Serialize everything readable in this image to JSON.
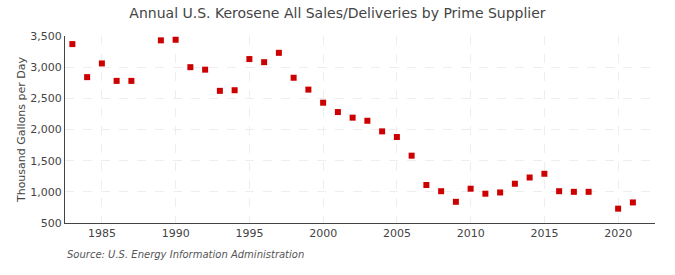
{
  "chart_data": {
    "type": "scatter",
    "title": "Annual U.S. Kerosene All Sales/Deliveries by Prime Supplier",
    "ylabel": "Thousand Gallons per Day",
    "annotations": [
      "Source: U.S. Energy Information Administration"
    ],
    "color": "#cc0000",
    "marker": "square",
    "grid": true,
    "x": [
      1983,
      1984,
      1985,
      1986,
      1987,
      1989,
      1990,
      1991,
      1992,
      1993,
      1994,
      1995,
      1996,
      1997,
      1998,
      1999,
      2000,
      2001,
      2002,
      2003,
      2004,
      2005,
      2006,
      2007,
      2008,
      2009,
      2010,
      2011,
      2012,
      2013,
      2014,
      2015,
      2016,
      2017,
      2018,
      2020,
      2021
    ],
    "values": [
      3370,
      2840,
      3060,
      2780,
      2780,
      3430,
      3440,
      3000,
      2960,
      2620,
      2630,
      3130,
      3080,
      3230,
      2830,
      2640,
      2430,
      2280,
      2190,
      2140,
      1970,
      1880,
      1580,
      1110,
      1010,
      840,
      1050,
      970,
      990,
      1130,
      1230,
      1290,
      1010,
      1000,
      1000,
      730,
      830
    ],
    "xlim": [
      1982.5,
      2022.5
    ],
    "xticks": [
      1985,
      1990,
      1995,
      2000,
      2005,
      2010,
      2015,
      2020
    ],
    "ylim": [
      500,
      3500
    ],
    "yticks": [
      500,
      {
        "value": 1000,
        "label": "1,000"
      },
      {
        "value": 1500,
        "label": "1,500"
      },
      {
        "value": 2000,
        "label": "2,000"
      },
      {
        "value": 2500,
        "label": "2,500"
      },
      {
        "value": 3000,
        "label": "3,000"
      },
      {
        "value": 3500,
        "label": "3,500"
      }
    ]
  }
}
